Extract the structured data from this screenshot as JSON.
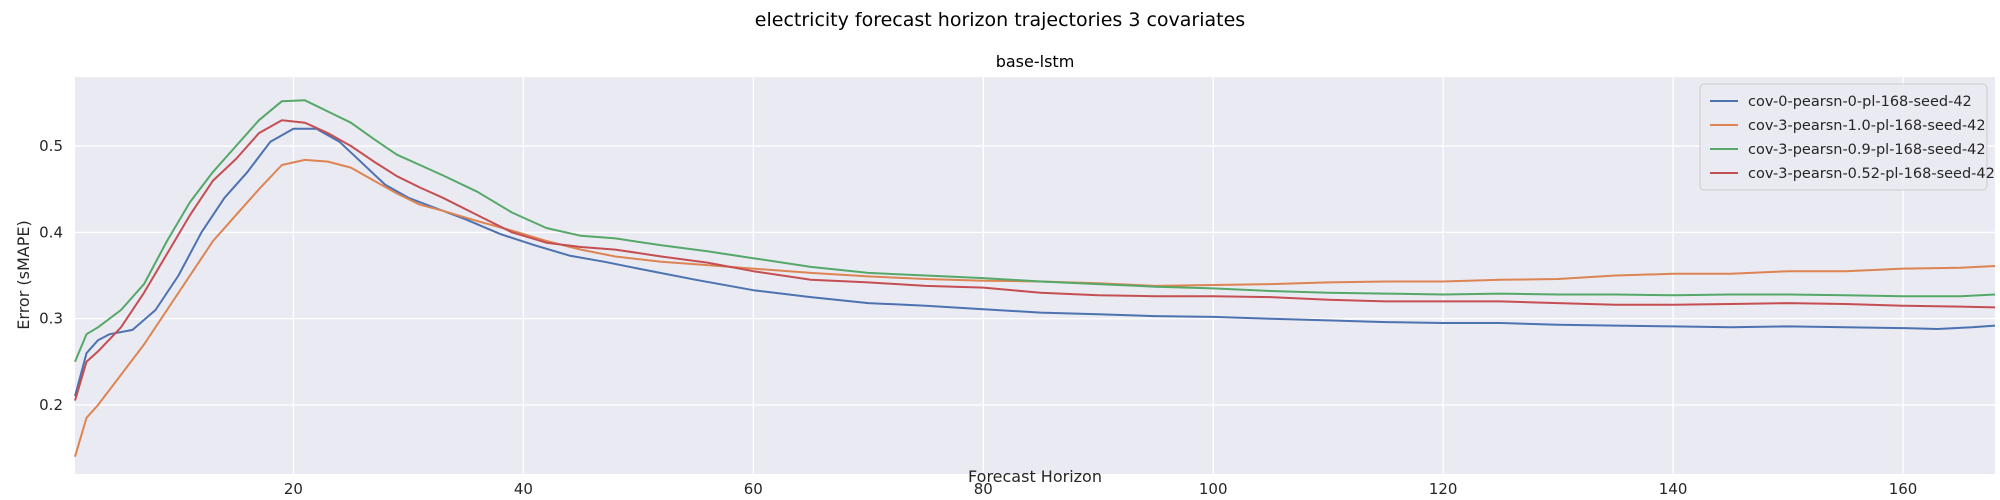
{
  "figure": {
    "suptitle": "electricity forecast horizon trajectories 3 covariates"
  },
  "chart_data": {
    "type": "line",
    "title": "base-lstm",
    "xlabel": "Forecast Horizon",
    "ylabel": "Error (sMAPE)",
    "xlim": [
      1,
      168
    ],
    "ylim": [
      0.12,
      0.58
    ],
    "xticks": [
      20,
      40,
      60,
      80,
      100,
      120,
      140,
      160
    ],
    "yticks": [
      0.2,
      0.3,
      0.4,
      0.5
    ],
    "grid": true,
    "legend_position": "top-right",
    "series": [
      {
        "name": "cov-0-pearsn-0-pl-168-seed-42",
        "color": "#4C72B0",
        "points": [
          [
            1,
            0.21
          ],
          [
            2,
            0.26
          ],
          [
            3,
            0.275
          ],
          [
            4,
            0.282
          ],
          [
            6,
            0.287
          ],
          [
            8,
            0.31
          ],
          [
            10,
            0.35
          ],
          [
            12,
            0.4
          ],
          [
            14,
            0.44
          ],
          [
            16,
            0.47
          ],
          [
            18,
            0.505
          ],
          [
            20,
            0.52
          ],
          [
            22,
            0.52
          ],
          [
            24,
            0.505
          ],
          [
            26,
            0.48
          ],
          [
            28,
            0.455
          ],
          [
            30,
            0.44
          ],
          [
            32,
            0.43
          ],
          [
            35,
            0.415
          ],
          [
            38,
            0.398
          ],
          [
            41,
            0.385
          ],
          [
            44,
            0.373
          ],
          [
            47,
            0.366
          ],
          [
            50,
            0.358
          ],
          [
            55,
            0.345
          ],
          [
            60,
            0.333
          ],
          [
            65,
            0.325
          ],
          [
            70,
            0.318
          ],
          [
            75,
            0.315
          ],
          [
            80,
            0.311
          ],
          [
            85,
            0.307
          ],
          [
            90,
            0.305
          ],
          [
            95,
            0.303
          ],
          [
            100,
            0.302
          ],
          [
            105,
            0.3
          ],
          [
            110,
            0.298
          ],
          [
            115,
            0.296
          ],
          [
            120,
            0.295
          ],
          [
            125,
            0.295
          ],
          [
            130,
            0.293
          ],
          [
            135,
            0.292
          ],
          [
            140,
            0.291
          ],
          [
            145,
            0.29
          ],
          [
            150,
            0.291
          ],
          [
            155,
            0.29
          ],
          [
            160,
            0.289
          ],
          [
            163,
            0.288
          ],
          [
            166,
            0.29
          ],
          [
            168,
            0.292
          ]
        ]
      },
      {
        "name": "cov-3-pearsn-1.0-pl-168-seed-42",
        "color": "#DD8452",
        "points": [
          [
            1,
            0.14
          ],
          [
            2,
            0.185
          ],
          [
            3,
            0.2
          ],
          [
            5,
            0.235
          ],
          [
            7,
            0.27
          ],
          [
            9,
            0.31
          ],
          [
            11,
            0.35
          ],
          [
            13,
            0.39
          ],
          [
            15,
            0.42
          ],
          [
            17,
            0.45
          ],
          [
            19,
            0.478
          ],
          [
            21,
            0.484
          ],
          [
            23,
            0.482
          ],
          [
            25,
            0.475
          ],
          [
            27,
            0.46
          ],
          [
            29,
            0.445
          ],
          [
            31,
            0.432
          ],
          [
            33,
            0.425
          ],
          [
            36,
            0.413
          ],
          [
            39,
            0.402
          ],
          [
            42,
            0.39
          ],
          [
            45,
            0.38
          ],
          [
            48,
            0.372
          ],
          [
            52,
            0.366
          ],
          [
            56,
            0.362
          ],
          [
            60,
            0.358
          ],
          [
            65,
            0.353
          ],
          [
            70,
            0.349
          ],
          [
            75,
            0.346
          ],
          [
            80,
            0.344
          ],
          [
            85,
            0.343
          ],
          [
            90,
            0.341
          ],
          [
            95,
            0.338
          ],
          [
            100,
            0.339
          ],
          [
            105,
            0.34
          ],
          [
            110,
            0.342
          ],
          [
            115,
            0.343
          ],
          [
            120,
            0.343
          ],
          [
            125,
            0.345
          ],
          [
            130,
            0.346
          ],
          [
            135,
            0.35
          ],
          [
            140,
            0.352
          ],
          [
            145,
            0.352
          ],
          [
            150,
            0.355
          ],
          [
            155,
            0.355
          ],
          [
            160,
            0.358
          ],
          [
            165,
            0.359
          ],
          [
            168,
            0.361
          ]
        ]
      },
      {
        "name": "cov-3-pearsn-0.9-pl-168-seed-42",
        "color": "#55A868",
        "points": [
          [
            1,
            0.25
          ],
          [
            2,
            0.282
          ],
          [
            3,
            0.29
          ],
          [
            5,
            0.31
          ],
          [
            7,
            0.34
          ],
          [
            9,
            0.39
          ],
          [
            11,
            0.435
          ],
          [
            13,
            0.47
          ],
          [
            15,
            0.5
          ],
          [
            17,
            0.53
          ],
          [
            19,
            0.552
          ],
          [
            21,
            0.553
          ],
          [
            23,
            0.54
          ],
          [
            25,
            0.527
          ],
          [
            27,
            0.508
          ],
          [
            29,
            0.49
          ],
          [
            31,
            0.478
          ],
          [
            33,
            0.466
          ],
          [
            36,
            0.447
          ],
          [
            39,
            0.423
          ],
          [
            42,
            0.405
          ],
          [
            45,
            0.396
          ],
          [
            48,
            0.393
          ],
          [
            52,
            0.385
          ],
          [
            56,
            0.378
          ],
          [
            60,
            0.37
          ],
          [
            65,
            0.36
          ],
          [
            70,
            0.353
          ],
          [
            75,
            0.35
          ],
          [
            80,
            0.347
          ],
          [
            85,
            0.343
          ],
          [
            90,
            0.34
          ],
          [
            95,
            0.337
          ],
          [
            100,
            0.335
          ],
          [
            105,
            0.332
          ],
          [
            110,
            0.33
          ],
          [
            115,
            0.329
          ],
          [
            120,
            0.328
          ],
          [
            125,
            0.329
          ],
          [
            130,
            0.328
          ],
          [
            135,
            0.328
          ],
          [
            140,
            0.327
          ],
          [
            145,
            0.328
          ],
          [
            150,
            0.328
          ],
          [
            155,
            0.327
          ],
          [
            160,
            0.326
          ],
          [
            165,
            0.326
          ],
          [
            168,
            0.328
          ]
        ]
      },
      {
        "name": "cov-3-pearsn-0.52-pl-168-seed-42",
        "color": "#C44E52",
        "points": [
          [
            1,
            0.205
          ],
          [
            2,
            0.25
          ],
          [
            3,
            0.262
          ],
          [
            5,
            0.29
          ],
          [
            7,
            0.33
          ],
          [
            9,
            0.375
          ],
          [
            11,
            0.42
          ],
          [
            13,
            0.46
          ],
          [
            15,
            0.485
          ],
          [
            17,
            0.515
          ],
          [
            19,
            0.53
          ],
          [
            21,
            0.527
          ],
          [
            23,
            0.515
          ],
          [
            25,
            0.5
          ],
          [
            27,
            0.482
          ],
          [
            29,
            0.465
          ],
          [
            31,
            0.452
          ],
          [
            33,
            0.44
          ],
          [
            36,
            0.42
          ],
          [
            39,
            0.4
          ],
          [
            42,
            0.388
          ],
          [
            45,
            0.383
          ],
          [
            48,
            0.38
          ],
          [
            52,
            0.372
          ],
          [
            56,
            0.365
          ],
          [
            60,
            0.355
          ],
          [
            65,
            0.345
          ],
          [
            70,
            0.342
          ],
          [
            75,
            0.338
          ],
          [
            80,
            0.336
          ],
          [
            85,
            0.33
          ],
          [
            90,
            0.327
          ],
          [
            95,
            0.326
          ],
          [
            100,
            0.326
          ],
          [
            105,
            0.325
          ],
          [
            110,
            0.322
          ],
          [
            115,
            0.32
          ],
          [
            120,
            0.32
          ],
          [
            125,
            0.32
          ],
          [
            130,
            0.318
          ],
          [
            135,
            0.316
          ],
          [
            140,
            0.316
          ],
          [
            145,
            0.317
          ],
          [
            150,
            0.318
          ],
          [
            155,
            0.317
          ],
          [
            160,
            0.315
          ],
          [
            165,
            0.314
          ],
          [
            168,
            0.313
          ]
        ]
      }
    ]
  }
}
